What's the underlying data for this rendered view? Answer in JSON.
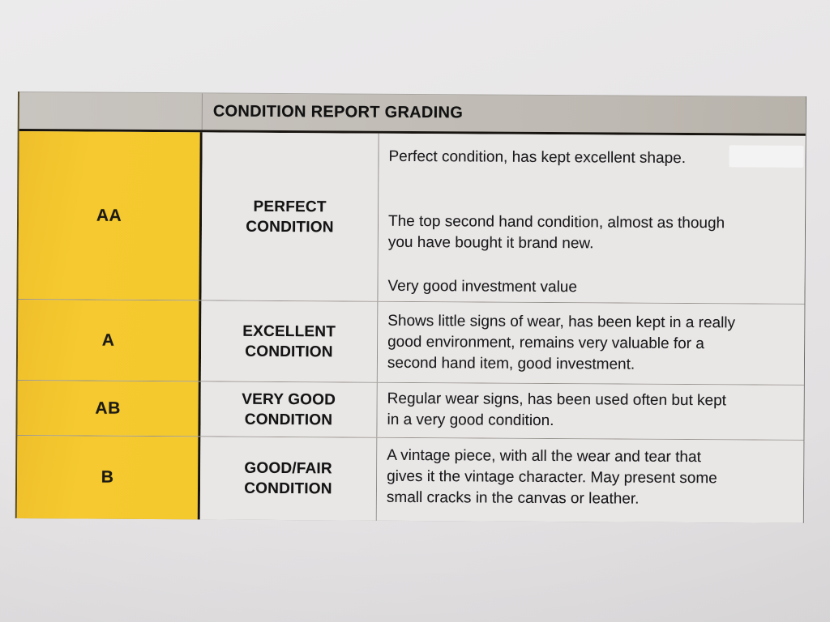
{
  "table": {
    "title": "CONDITION REPORT GRADING",
    "rows": [
      {
        "grade": "AA",
        "label": "PERFECT\nCONDITION",
        "paragraphs": [
          "Perfect condition, has kept excellent shape.",
          "The top second hand condition, almost as though\nyou have bought it brand new.",
          "Very good investment value"
        ]
      },
      {
        "grade": "A",
        "label": "EXCELLENT\nCONDITION",
        "paragraphs": [
          "Shows little signs of wear, has been kept in a really\ngood environment, remains very valuable for a\nsecond hand item, good investment."
        ]
      },
      {
        "grade": "AB",
        "label": "VERY GOOD\nCONDITION",
        "paragraphs": [
          "Regular wear signs, has been used often but kept\nin a very good condition."
        ]
      },
      {
        "grade": "B",
        "label": "GOOD/FAIR\nCONDITION",
        "paragraphs": [
          "A vintage piece, with all the wear and tear that\ngives it the vintage character. May present some\nsmall cracks in the canvas or leather."
        ]
      }
    ],
    "colors": {
      "grade_column_yellow": "#f5c92f",
      "header_gray": "#c8c4bf",
      "paper": "#e8e6e7",
      "text": "#151517"
    }
  }
}
